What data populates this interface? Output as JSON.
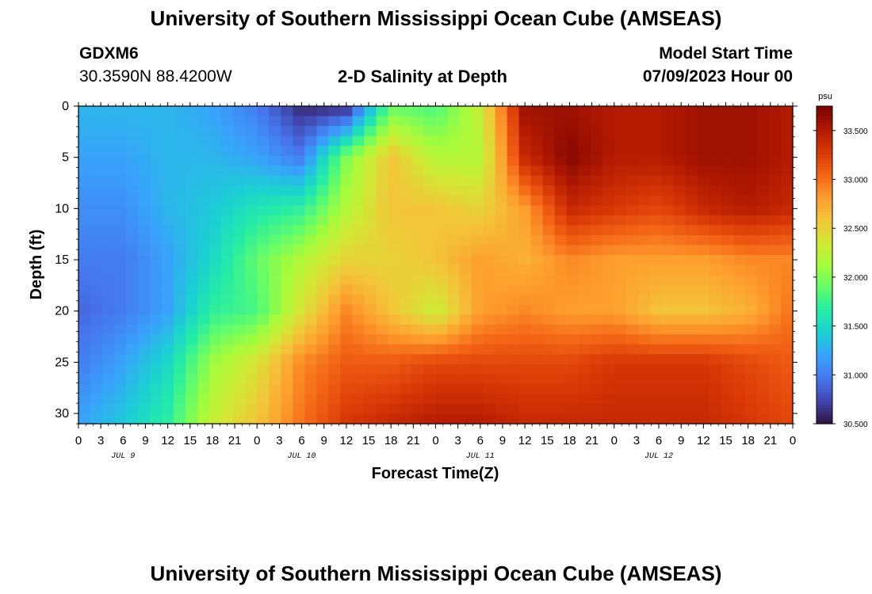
{
  "header": {
    "title": "University of Southern Mississippi Ocean Cube (AMSEAS)",
    "station_id": "GDXM6",
    "coordinates": "30.3590N  88.4200W",
    "plot_title": "2-D Salinity at Depth",
    "model_start_label": "Model Start Time",
    "model_start_value": "07/09/2023 Hour 00"
  },
  "footer": {
    "title": "University of Southern Mississippi Ocean Cube (AMSEAS)"
  },
  "colors": {
    "colormap": [
      "#30123b",
      "#4145ab",
      "#4675ed",
      "#39a2fc",
      "#1bcfd4",
      "#24eca6",
      "#61fc6c",
      "#a4fc3b",
      "#d1e834",
      "#f3c63a",
      "#fe9b2d",
      "#f36315",
      "#d93806",
      "#b11901",
      "#7a0402"
    ]
  },
  "chart_data": {
    "type": "heatmap",
    "variable": "Salinity",
    "units": "psu",
    "xlabel": "Forecast Time(Z)",
    "ylabel": "Depth (ft)",
    "x_hours_range": [
      0,
      96
    ],
    "x_tick_labels": [
      "0",
      "3",
      "6",
      "9",
      "12",
      "15",
      "18",
      "21",
      "0",
      "3",
      "6",
      "9",
      "12",
      "15",
      "18",
      "21",
      "0",
      "3",
      "6",
      "9",
      "12",
      "15",
      "18",
      "21",
      "0",
      "3",
      "6",
      "9",
      "12",
      "15",
      "18",
      "21",
      "0"
    ],
    "day_labels": [
      "JUL 9",
      "JUL 10",
      "JUL 11",
      "JUL 12"
    ],
    "y_ticks": [
      0,
      5,
      10,
      15,
      20,
      25,
      30
    ],
    "ylim": [
      0,
      31
    ],
    "colorbar": {
      "range": [
        30.5,
        33.75
      ],
      "tick_values": [
        30.5,
        31.0,
        31.5,
        32.0,
        32.5,
        33.0,
        33.5
      ],
      "tick_labels": [
        "30.500",
        "31.000",
        "31.500",
        "32.000",
        "32.500",
        "33.000",
        "33.500"
      ]
    },
    "x_hours": [
      0,
      6,
      12,
      18,
      24,
      30,
      36,
      42,
      48,
      54,
      60,
      66,
      72,
      78,
      84,
      90,
      96
    ],
    "depths_ft": [
      0,
      5,
      10,
      15,
      20,
      25,
      31
    ],
    "salinity_psu": [
      [
        31.3,
        31.3,
        31.3,
        31.2,
        31.0,
        30.6,
        30.6,
        31.9,
        31.8,
        32.3,
        33.6,
        33.6,
        33.5,
        33.5,
        33.6,
        33.6,
        33.5
      ],
      [
        31.2,
        31.2,
        31.3,
        31.3,
        31.2,
        31.0,
        32.0,
        32.6,
        32.2,
        32.2,
        33.4,
        33.7,
        33.5,
        33.5,
        33.6,
        33.6,
        33.5
      ],
      [
        31.1,
        31.1,
        31.3,
        31.4,
        31.6,
        31.7,
        32.2,
        32.6,
        32.6,
        32.5,
        32.8,
        33.4,
        33.3,
        33.2,
        33.4,
        33.5,
        33.4
      ],
      [
        31.0,
        31.0,
        31.2,
        31.5,
        31.9,
        32.2,
        32.5,
        32.5,
        32.6,
        32.8,
        32.7,
        32.9,
        32.8,
        32.8,
        32.8,
        32.9,
        32.9
      ],
      [
        30.9,
        31.0,
        31.2,
        31.7,
        31.8,
        32.4,
        32.9,
        32.6,
        32.3,
        32.8,
        32.9,
        32.8,
        32.8,
        32.6,
        32.6,
        32.7,
        33.0
      ],
      [
        31.0,
        31.2,
        31.5,
        32.1,
        32.4,
        32.9,
        33.1,
        33.1,
        33.2,
        33.2,
        33.2,
        33.2,
        33.3,
        33.3,
        33.3,
        33.2,
        33.1
      ],
      [
        31.2,
        31.4,
        31.7,
        32.3,
        32.6,
        33.0,
        33.3,
        33.4,
        33.5,
        33.5,
        33.4,
        33.4,
        33.4,
        33.4,
        33.4,
        33.3,
        33.2
      ]
    ]
  }
}
